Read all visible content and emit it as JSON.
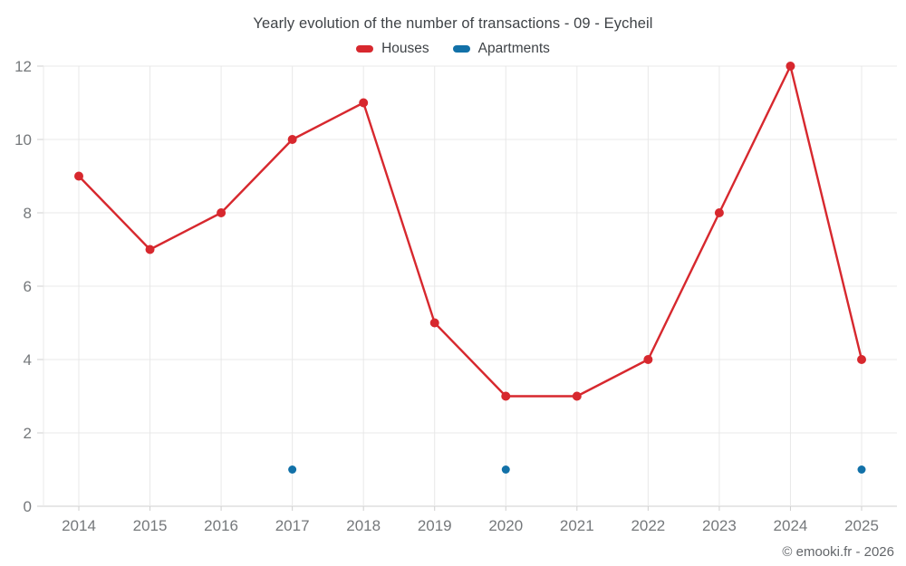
{
  "title": "Yearly evolution of the number of transactions - 09 - Eycheil",
  "copyright": "© emooki.fr - 2026",
  "legend": [
    {
      "label": "Houses",
      "color": "#d7282e"
    },
    {
      "label": "Apartments",
      "color": "#1271a8"
    }
  ],
  "colors": {
    "houses": "#d7282e",
    "apartments": "#1271a8",
    "gridline": "#e8e8e8",
    "axis": "#cfcfcf",
    "tick_label": "#75787b"
  },
  "chart_data": {
    "type": "line",
    "categories": [
      "2014",
      "2015",
      "2016",
      "2017",
      "2018",
      "2019",
      "2020",
      "2021",
      "2022",
      "2023",
      "2024",
      "2025"
    ],
    "series": [
      {
        "name": "Houses",
        "color": "#d7282e",
        "draw_line": true,
        "values": [
          9,
          7,
          8,
          10,
          11,
          5,
          3,
          3,
          4,
          8,
          12,
          4
        ]
      },
      {
        "name": "Apartments",
        "color": "#1271a8",
        "draw_line": false,
        "values": [
          null,
          null,
          null,
          1,
          null,
          null,
          1,
          null,
          null,
          null,
          null,
          1
        ]
      }
    ],
    "title": "Yearly evolution of the number of transactions - 09 - Eycheil",
    "xlabel": "",
    "ylabel": "",
    "ylim": [
      0,
      12
    ],
    "yticks": [
      0,
      2,
      4,
      6,
      8,
      10,
      12
    ],
    "grid": true,
    "legend_position": "top"
  }
}
